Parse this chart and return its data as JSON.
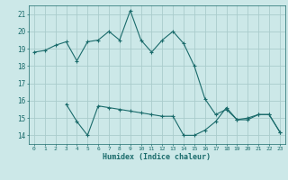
{
  "xlabel": "Humidex (Indice chaleur)",
  "bg_color": "#cce8e8",
  "grid_color": "#aacccc",
  "line_color": "#1a6b6b",
  "x_ticks": [
    0,
    1,
    2,
    3,
    4,
    5,
    6,
    7,
    8,
    9,
    10,
    11,
    12,
    13,
    14,
    15,
    16,
    17,
    18,
    19,
    20,
    21,
    22,
    23
  ],
  "ylim": [
    13.5,
    21.5
  ],
  "yticks": [
    14,
    15,
    16,
    17,
    18,
    19,
    20,
    21
  ],
  "line1_x": [
    0,
    1,
    2,
    3,
    4,
    5,
    6,
    7,
    8,
    9,
    10,
    11,
    12,
    13,
    14,
    15,
    16,
    17,
    18,
    19,
    20,
    21,
    22,
    23
  ],
  "line1_y": [
    18.8,
    18.9,
    19.2,
    19.4,
    18.3,
    19.4,
    19.5,
    20.0,
    19.5,
    21.2,
    19.5,
    18.8,
    19.5,
    20.0,
    19.3,
    18.0,
    16.1,
    15.2,
    15.5,
    14.9,
    15.0,
    15.2,
    15.2,
    14.2
  ],
  "line2_x": [
    3,
    4,
    5,
    6,
    7,
    8,
    9,
    10,
    11,
    12,
    13,
    14,
    15,
    16,
    17,
    18,
    19,
    20,
    21,
    22,
    23
  ],
  "line2_y": [
    15.8,
    14.8,
    14.0,
    15.7,
    15.6,
    15.5,
    15.4,
    15.3,
    15.2,
    15.1,
    15.1,
    14.0,
    14.0,
    14.3,
    14.8,
    15.6,
    14.9,
    14.9,
    15.2,
    15.2,
    14.2
  ]
}
